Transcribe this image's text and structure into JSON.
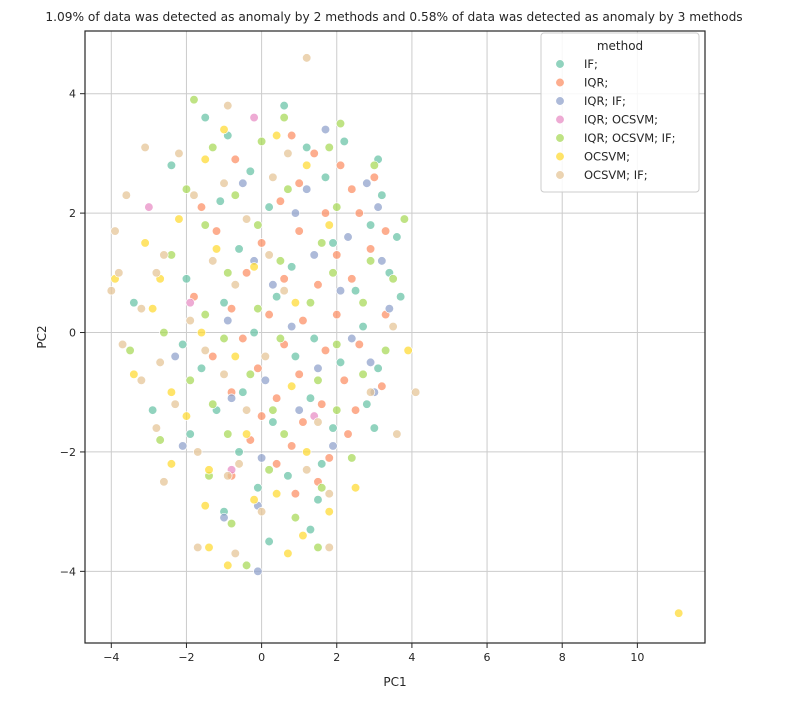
{
  "chart_data": {
    "type": "scatter",
    "title": "1.09% of data was detected as anomaly by 2 methods and 0.58% of data was detected as anomaly by 3 methods",
    "xlabel": "PC1",
    "ylabel": "PC2",
    "xlim": [
      -4.7,
      11.8
    ],
    "ylim": [
      -5.2,
      5.05
    ],
    "xticks": [
      -4,
      -2,
      0,
      2,
      4,
      6,
      8,
      10
    ],
    "yticks": [
      -4,
      -2,
      0,
      2,
      4
    ],
    "grid": true,
    "legend": {
      "title": "method",
      "placement": "top-right"
    },
    "series": [
      {
        "name": "IF;",
        "color": "#66c2a5",
        "points": [
          [
            -1.5,
            3.6
          ],
          [
            -2.4,
            2.8
          ],
          [
            -0.9,
            3.3
          ],
          [
            0.6,
            3.8
          ],
          [
            1.2,
            3.1
          ],
          [
            2.2,
            3.2
          ],
          [
            3.1,
            2.9
          ],
          [
            -0.3,
            2.7
          ],
          [
            1.7,
            2.6
          ],
          [
            3.2,
            2.3
          ],
          [
            -1.1,
            2.2
          ],
          [
            0.2,
            2.1
          ],
          [
            2.9,
            1.8
          ],
          [
            3.6,
            1.6
          ],
          [
            -0.6,
            1.4
          ],
          [
            0.8,
            1.1
          ],
          [
            1.9,
            1.5
          ],
          [
            3.4,
            1.0
          ],
          [
            -2.0,
            0.9
          ],
          [
            -1.0,
            0.5
          ],
          [
            0.4,
            0.6
          ],
          [
            2.5,
            0.7
          ],
          [
            3.7,
            0.6
          ],
          [
            -3.4,
            0.5
          ],
          [
            -0.2,
            0.0
          ],
          [
            1.4,
            -0.1
          ],
          [
            2.7,
            0.1
          ],
          [
            -2.1,
            -0.2
          ],
          [
            0.9,
            -0.4
          ],
          [
            2.1,
            -0.5
          ],
          [
            3.1,
            -0.6
          ],
          [
            -1.6,
            -0.6
          ],
          [
            -0.5,
            -1.0
          ],
          [
            1.3,
            -1.1
          ],
          [
            2.8,
            -1.2
          ],
          [
            -2.9,
            -1.3
          ],
          [
            -1.2,
            -1.3
          ],
          [
            0.3,
            -1.5
          ],
          [
            1.9,
            -1.6
          ],
          [
            3.0,
            -1.6
          ],
          [
            -1.9,
            -1.7
          ],
          [
            -0.6,
            -2.0
          ],
          [
            0.7,
            -2.4
          ],
          [
            1.6,
            -2.2
          ],
          [
            -0.1,
            -2.6
          ],
          [
            1.5,
            -2.8
          ],
          [
            -1.0,
            -3.0
          ],
          [
            0.2,
            -3.5
          ],
          [
            1.3,
            -3.3
          ]
        ]
      },
      {
        "name": "IQR;",
        "color": "#fc8d62",
        "points": [
          [
            0.8,
            3.3
          ],
          [
            1.4,
            3.0
          ],
          [
            2.1,
            2.8
          ],
          [
            -0.7,
            2.9
          ],
          [
            1.0,
            2.5
          ],
          [
            2.4,
            2.4
          ],
          [
            3.0,
            2.6
          ],
          [
            -1.6,
            2.1
          ],
          [
            0.5,
            2.2
          ],
          [
            1.7,
            2.0
          ],
          [
            2.6,
            2.0
          ],
          [
            3.3,
            1.7
          ],
          [
            -1.2,
            1.7
          ],
          [
            0.0,
            1.5
          ],
          [
            1.0,
            1.7
          ],
          [
            2.0,
            1.3
          ],
          [
            2.9,
            1.4
          ],
          [
            -0.4,
            1.0
          ],
          [
            0.6,
            0.9
          ],
          [
            1.5,
            0.8
          ],
          [
            2.4,
            0.9
          ],
          [
            -1.8,
            0.6
          ],
          [
            -0.8,
            0.4
          ],
          [
            0.2,
            0.3
          ],
          [
            1.1,
            0.2
          ],
          [
            2.0,
            0.3
          ],
          [
            3.3,
            0.3
          ],
          [
            -0.5,
            -0.1
          ],
          [
            0.6,
            -0.2
          ],
          [
            1.7,
            -0.3
          ],
          [
            2.6,
            -0.2
          ],
          [
            -1.3,
            -0.4
          ],
          [
            -0.1,
            -0.6
          ],
          [
            1.0,
            -0.7
          ],
          [
            2.2,
            -0.8
          ],
          [
            3.2,
            -0.9
          ],
          [
            -0.8,
            -1.0
          ],
          [
            0.4,
            -1.1
          ],
          [
            1.6,
            -1.2
          ],
          [
            2.5,
            -1.3
          ],
          [
            0.0,
            -1.4
          ],
          [
            1.1,
            -1.5
          ],
          [
            2.3,
            -1.7
          ],
          [
            -0.3,
            -1.8
          ],
          [
            0.8,
            -1.9
          ],
          [
            1.8,
            -2.1
          ],
          [
            0.4,
            -2.2
          ],
          [
            1.5,
            -2.5
          ],
          [
            -0.8,
            -2.4
          ],
          [
            0.9,
            -2.7
          ]
        ]
      },
      {
        "name": "IQR;  IF;",
        "color": "#8da0cb",
        "points": [
          [
            1.7,
            3.4
          ],
          [
            -0.5,
            2.5
          ],
          [
            1.2,
            2.4
          ],
          [
            2.8,
            2.5
          ],
          [
            3.1,
            2.1
          ],
          [
            0.9,
            2.0
          ],
          [
            2.3,
            1.6
          ],
          [
            -0.2,
            1.2
          ],
          [
            1.4,
            1.3
          ],
          [
            3.2,
            1.2
          ],
          [
            0.3,
            0.8
          ],
          [
            2.1,
            0.7
          ],
          [
            3.4,
            0.4
          ],
          [
            -0.9,
            0.2
          ],
          [
            0.8,
            0.1
          ],
          [
            2.4,
            -0.1
          ],
          [
            -2.3,
            -0.4
          ],
          [
            0.1,
            -0.8
          ],
          [
            1.5,
            -0.6
          ],
          [
            2.9,
            -0.5
          ],
          [
            -0.8,
            -1.1
          ],
          [
            1.0,
            -1.3
          ],
          [
            3.0,
            -1.0
          ],
          [
            -2.1,
            -1.9
          ],
          [
            0.0,
            -2.1
          ],
          [
            1.9,
            -1.9
          ],
          [
            -0.1,
            -2.9
          ],
          [
            -1.0,
            -3.1
          ],
          [
            -0.1,
            -4.0
          ]
        ]
      },
      {
        "name": "IQR;  OCSVM;",
        "color": "#e78ac3",
        "points": [
          [
            -0.2,
            3.6
          ],
          [
            -3.0,
            2.1
          ],
          [
            -1.9,
            0.5
          ],
          [
            1.4,
            -1.4
          ],
          [
            -0.8,
            -2.3
          ]
        ]
      },
      {
        "name": "IQR;  OCSVM;  IF;",
        "color": "#a6d854",
        "points": [
          [
            -1.8,
            3.9
          ],
          [
            0.6,
            3.6
          ],
          [
            2.1,
            3.5
          ],
          [
            -1.3,
            3.1
          ],
          [
            0.0,
            3.2
          ],
          [
            1.8,
            3.1
          ],
          [
            3.0,
            2.8
          ],
          [
            -2.0,
            2.4
          ],
          [
            -0.7,
            2.3
          ],
          [
            0.7,
            2.4
          ],
          [
            2.0,
            2.1
          ],
          [
            3.8,
            1.9
          ],
          [
            -1.5,
            1.8
          ],
          [
            -0.1,
            1.8
          ],
          [
            1.6,
            1.5
          ],
          [
            2.9,
            1.2
          ],
          [
            -2.4,
            1.3
          ],
          [
            -0.9,
            1.0
          ],
          [
            0.5,
            1.2
          ],
          [
            1.9,
            1.0
          ],
          [
            3.5,
            0.9
          ],
          [
            -1.5,
            0.3
          ],
          [
            -0.1,
            0.4
          ],
          [
            1.3,
            0.5
          ],
          [
            2.7,
            0.5
          ],
          [
            -2.6,
            0.0
          ],
          [
            -1.0,
            -0.1
          ],
          [
            0.5,
            -0.1
          ],
          [
            2.0,
            -0.2
          ],
          [
            3.3,
            -0.3
          ],
          [
            -3.5,
            -0.3
          ],
          [
            -1.9,
            -0.8
          ],
          [
            -0.3,
            -0.7
          ],
          [
            1.5,
            -0.8
          ],
          [
            2.7,
            -0.7
          ],
          [
            -1.3,
            -1.2
          ],
          [
            0.3,
            -1.3
          ],
          [
            2.0,
            -1.3
          ],
          [
            -2.7,
            -1.8
          ],
          [
            -0.9,
            -1.7
          ],
          [
            0.6,
            -1.7
          ],
          [
            2.4,
            -2.1
          ],
          [
            -1.4,
            -2.4
          ],
          [
            0.2,
            -2.3
          ],
          [
            1.6,
            -2.6
          ],
          [
            -0.8,
            -3.2
          ],
          [
            0.9,
            -3.1
          ],
          [
            -0.4,
            -3.9
          ],
          [
            1.5,
            -3.6
          ]
        ]
      },
      {
        "name": "OCSVM;",
        "color": "#ffd92f",
        "points": [
          [
            11.1,
            -4.7
          ],
          [
            -3.1,
            1.5
          ],
          [
            -3.9,
            0.9
          ],
          [
            -2.2,
            1.9
          ],
          [
            -1.5,
            2.9
          ],
          [
            -1.2,
            1.4
          ],
          [
            -1.0,
            3.4
          ],
          [
            0.4,
            3.3
          ],
          [
            1.2,
            2.8
          ],
          [
            -2.7,
            0.9
          ],
          [
            -0.2,
            1.1
          ],
          [
            1.8,
            1.8
          ],
          [
            -2.9,
            0.4
          ],
          [
            -1.6,
            0.0
          ],
          [
            0.9,
            0.5
          ],
          [
            3.9,
            -0.3
          ],
          [
            -3.4,
            -0.7
          ],
          [
            -2.4,
            -1.0
          ],
          [
            -0.7,
            -0.4
          ],
          [
            0.8,
            -0.9
          ],
          [
            -2.0,
            -1.4
          ],
          [
            -0.4,
            -1.7
          ],
          [
            1.2,
            -2.0
          ],
          [
            -2.4,
            -2.2
          ],
          [
            -1.4,
            -2.3
          ],
          [
            0.4,
            -2.7
          ],
          [
            1.8,
            -3.0
          ],
          [
            -1.5,
            -2.9
          ],
          [
            -0.2,
            -2.8
          ],
          [
            1.1,
            -3.4
          ],
          [
            -0.9,
            -3.9
          ],
          [
            0.7,
            -3.7
          ],
          [
            2.5,
            -2.6
          ],
          [
            -1.4,
            -3.6
          ]
        ]
      },
      {
        "name": "OCSVM;  IF;",
        "color": "#e5c494",
        "points": [
          [
            1.2,
            4.6
          ],
          [
            -0.9,
            3.8
          ],
          [
            -3.1,
            3.1
          ],
          [
            -2.2,
            3.0
          ],
          [
            0.7,
            3.0
          ],
          [
            -1.0,
            2.5
          ],
          [
            0.3,
            2.6
          ],
          [
            -3.6,
            2.3
          ],
          [
            -1.8,
            2.3
          ],
          [
            -0.4,
            1.9
          ],
          [
            -3.9,
            1.7
          ],
          [
            -2.6,
            1.3
          ],
          [
            -1.3,
            1.2
          ],
          [
            0.2,
            1.3
          ],
          [
            -3.8,
            1.0
          ],
          [
            -2.8,
            1.0
          ],
          [
            -0.7,
            0.8
          ],
          [
            0.6,
            0.7
          ],
          [
            -4.0,
            0.7
          ],
          [
            -3.2,
            0.4
          ],
          [
            -1.9,
            0.2
          ],
          [
            3.5,
            0.1
          ],
          [
            -3.7,
            -0.2
          ],
          [
            -2.7,
            -0.5
          ],
          [
            -1.5,
            -0.3
          ],
          [
            -3.2,
            -0.8
          ],
          [
            -1.0,
            -0.7
          ],
          [
            0.1,
            -0.4
          ],
          [
            2.9,
            -1.0
          ],
          [
            4.1,
            -1.0
          ],
          [
            -2.3,
            -1.2
          ],
          [
            -0.4,
            -1.3
          ],
          [
            1.5,
            -1.5
          ],
          [
            3.6,
            -1.7
          ],
          [
            -2.8,
            -1.6
          ],
          [
            -1.7,
            -2.0
          ],
          [
            -0.6,
            -2.2
          ],
          [
            1.2,
            -2.3
          ],
          [
            -2.6,
            -2.5
          ],
          [
            -0.9,
            -2.4
          ],
          [
            0.0,
            -3.0
          ],
          [
            1.8,
            -2.7
          ],
          [
            -1.7,
            -3.6
          ],
          [
            1.8,
            -3.6
          ],
          [
            -0.7,
            -3.7
          ]
        ]
      }
    ]
  }
}
